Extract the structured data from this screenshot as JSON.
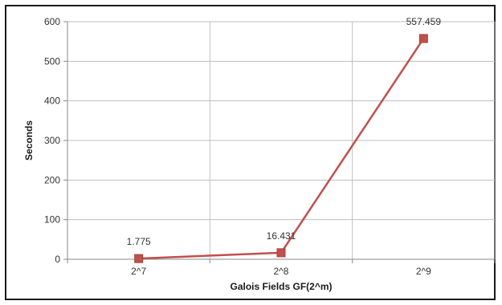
{
  "chart_data": {
    "type": "line",
    "title": "",
    "xlabel": "Galois Fields GF(2^m)",
    "ylabel": "Seconds",
    "categories": [
      "2^7",
      "2^8",
      "2^9"
    ],
    "series": [
      {
        "values": [
          1.775,
          16.431,
          557.459
        ],
        "color": "#c0504d"
      }
    ],
    "data_labels": [
      "1.775",
      "16.431",
      "557.459"
    ],
    "ylim": [
      0,
      600
    ],
    "yticks": [
      0,
      100,
      200,
      300,
      400,
      500,
      600
    ],
    "grid": true,
    "legend": "none",
    "marker": "square"
  }
}
